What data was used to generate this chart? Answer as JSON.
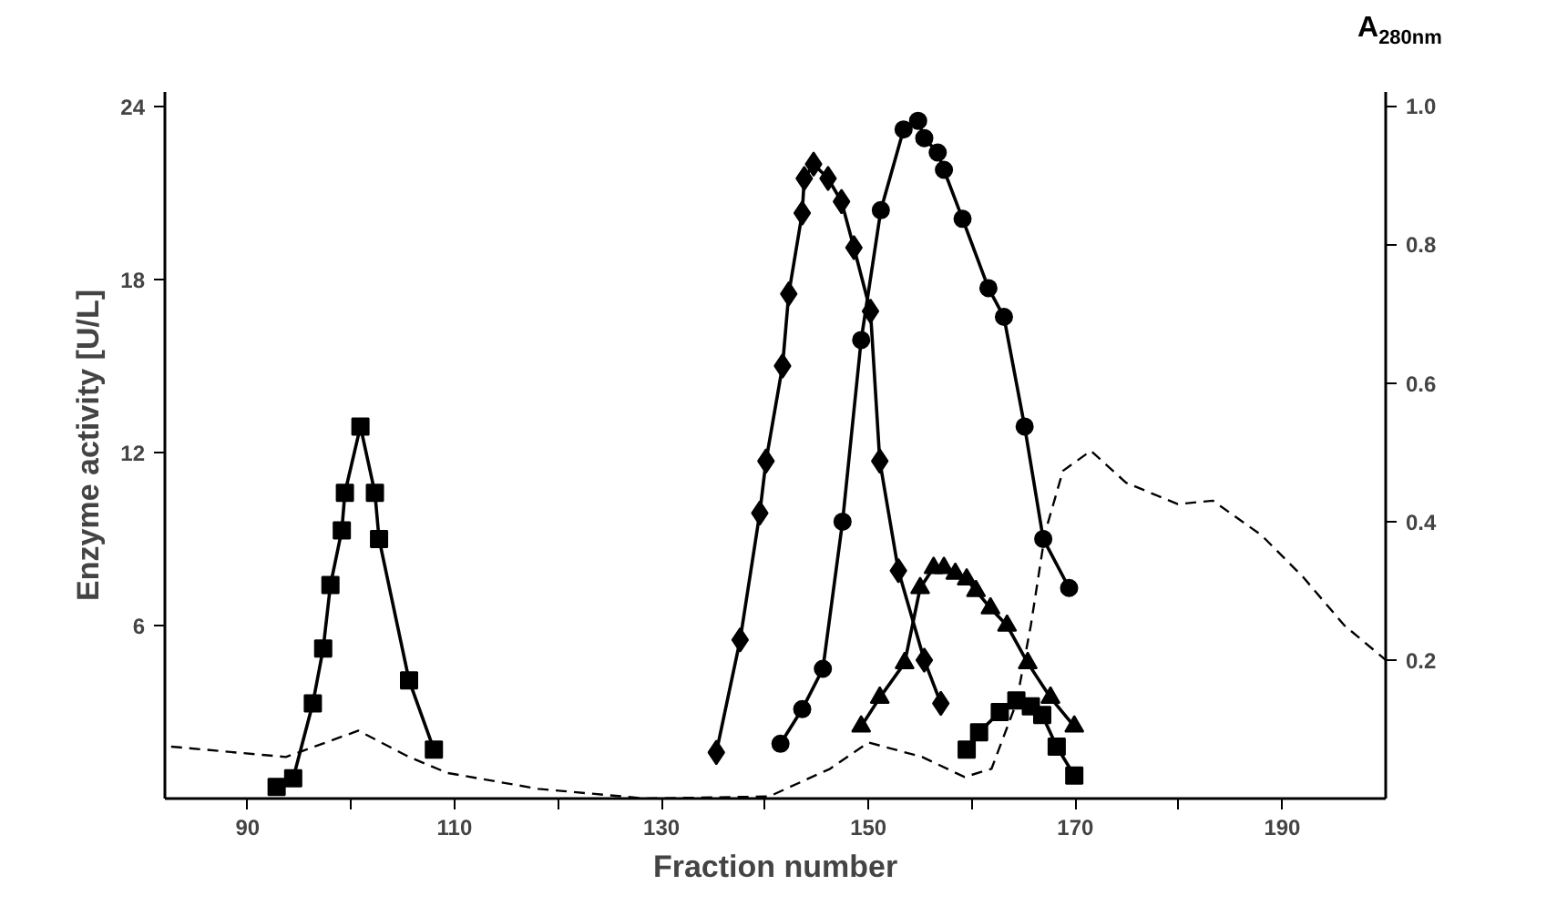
{
  "chart_data": {
    "type": "line",
    "xlabel": "Fraction number",
    "ylabel": "Enzyme activity [U/L]",
    "y2label": "A$_{280nm}$",
    "xlim": [
      82,
      200
    ],
    "ylim": [
      0,
      24.5
    ],
    "y2lim": [
      0,
      1.02
    ],
    "xticks": [
      90,
      {
        "value": 100,
        "label": null
      },
      110,
      {
        "value": 120,
        "label": null
      },
      130,
      {
        "value": 140,
        "label": null
      },
      150,
      {
        "value": 160,
        "label": null
      },
      170,
      {
        "value": 180,
        "label": null
      },
      190
    ],
    "yticks": [
      6,
      12,
      18,
      24
    ],
    "y2ticks": [
      0.2,
      0.4,
      0.6,
      0.8,
      {
        "value": 1.0,
        "label": "1.0"
      }
    ],
    "grid": false,
    "series": [
      {
        "color": "#000000",
        "marker": "square",
        "line_style": "solid",
        "x": [
          92.8,
          94.4,
          96.3,
          97.3,
          98.0,
          99.1,
          99.4,
          100.9,
          102.3,
          102.7,
          105.6,
          108.0
        ],
        "values": [
          0.4,
          0.7,
          3.3,
          5.2,
          7.4,
          9.3,
          10.6,
          12.9,
          10.6,
          9.0,
          4.1,
          1.7
        ]
      },
      {
        "color": "#000000",
        "marker": "diamond",
        "line_style": "solid",
        "x": [
          135.3,
          137.6,
          139.5,
          140.1,
          141.7,
          142.3,
          143.6,
          143.8,
          144.7,
          146.1,
          147.4,
          148.6,
          150.2,
          151.1,
          152.9,
          155.4,
          157.0
        ],
        "values": [
          1.6,
          5.5,
          9.9,
          11.7,
          15.0,
          17.5,
          20.3,
          21.5,
          22.0,
          21.5,
          20.7,
          19.1,
          16.9,
          11.7,
          7.9,
          4.8,
          3.3
        ]
      },
      {
        "color": "#000000",
        "marker": "circle",
        "line_style": "solid",
        "x": [
          141.5,
          143.6,
          145.6,
          147.5,
          149.3,
          151.2,
          153.4,
          154.8,
          155.4,
          156.7,
          157.3,
          159.1,
          161.6,
          163.1,
          165.1,
          166.9,
          169.4
        ],
        "values": [
          1.9,
          3.1,
          4.5,
          9.6,
          15.9,
          20.4,
          23.2,
          23.5,
          22.9,
          22.4,
          21.8,
          20.1,
          17.7,
          16.7,
          12.9,
          9.0,
          7.3
        ]
      },
      {
        "color": "#000000",
        "marker": "triangle",
        "line_style": "solid",
        "x": [
          149.3,
          151.1,
          153.5,
          155.0,
          156.3,
          157.3,
          158.4,
          159.5,
          160.4,
          161.8,
          163.4,
          165.4,
          167.6,
          169.9
        ],
        "values": [
          2.5,
          3.5,
          4.7,
          7.3,
          8.0,
          8.0,
          7.8,
          7.6,
          7.2,
          6.6,
          6.0,
          4.7,
          3.5,
          2.5
        ]
      },
      {
        "color": "#000000",
        "marker": "square",
        "line_style": "solid",
        "x": [
          159.5,
          160.7,
          162.7,
          164.3,
          165.7,
          166.8,
          168.2,
          169.9
        ],
        "values": [
          1.7,
          2.3,
          3.0,
          3.4,
          3.2,
          2.9,
          1.8,
          0.8
        ]
      },
      {
        "color": "#000000",
        "marker": "none",
        "line_style": "dashed",
        "axis": "y2",
        "x": [
          82.6,
          93.7,
          100.7,
          105.6,
          109.3,
          118.1,
          128.5,
          140.4,
          146.3,
          150.0,
          155.2,
          159.3,
          161.9,
          164.3,
          165.7,
          167.1,
          168.8,
          171.5,
          174.9,
          179.9,
          183.3,
          188.0,
          192.0,
          196.0,
          200.0
        ],
        "values": [
          0.075,
          0.06,
          0.098,
          0.06,
          0.037,
          0.014,
          0.0,
          0.003,
          0.043,
          0.081,
          0.06,
          0.031,
          0.043,
          0.138,
          0.25,
          0.385,
          0.473,
          0.502,
          0.456,
          0.425,
          0.43,
          0.38,
          0.32,
          0.25,
          0.2
        ]
      }
    ]
  }
}
